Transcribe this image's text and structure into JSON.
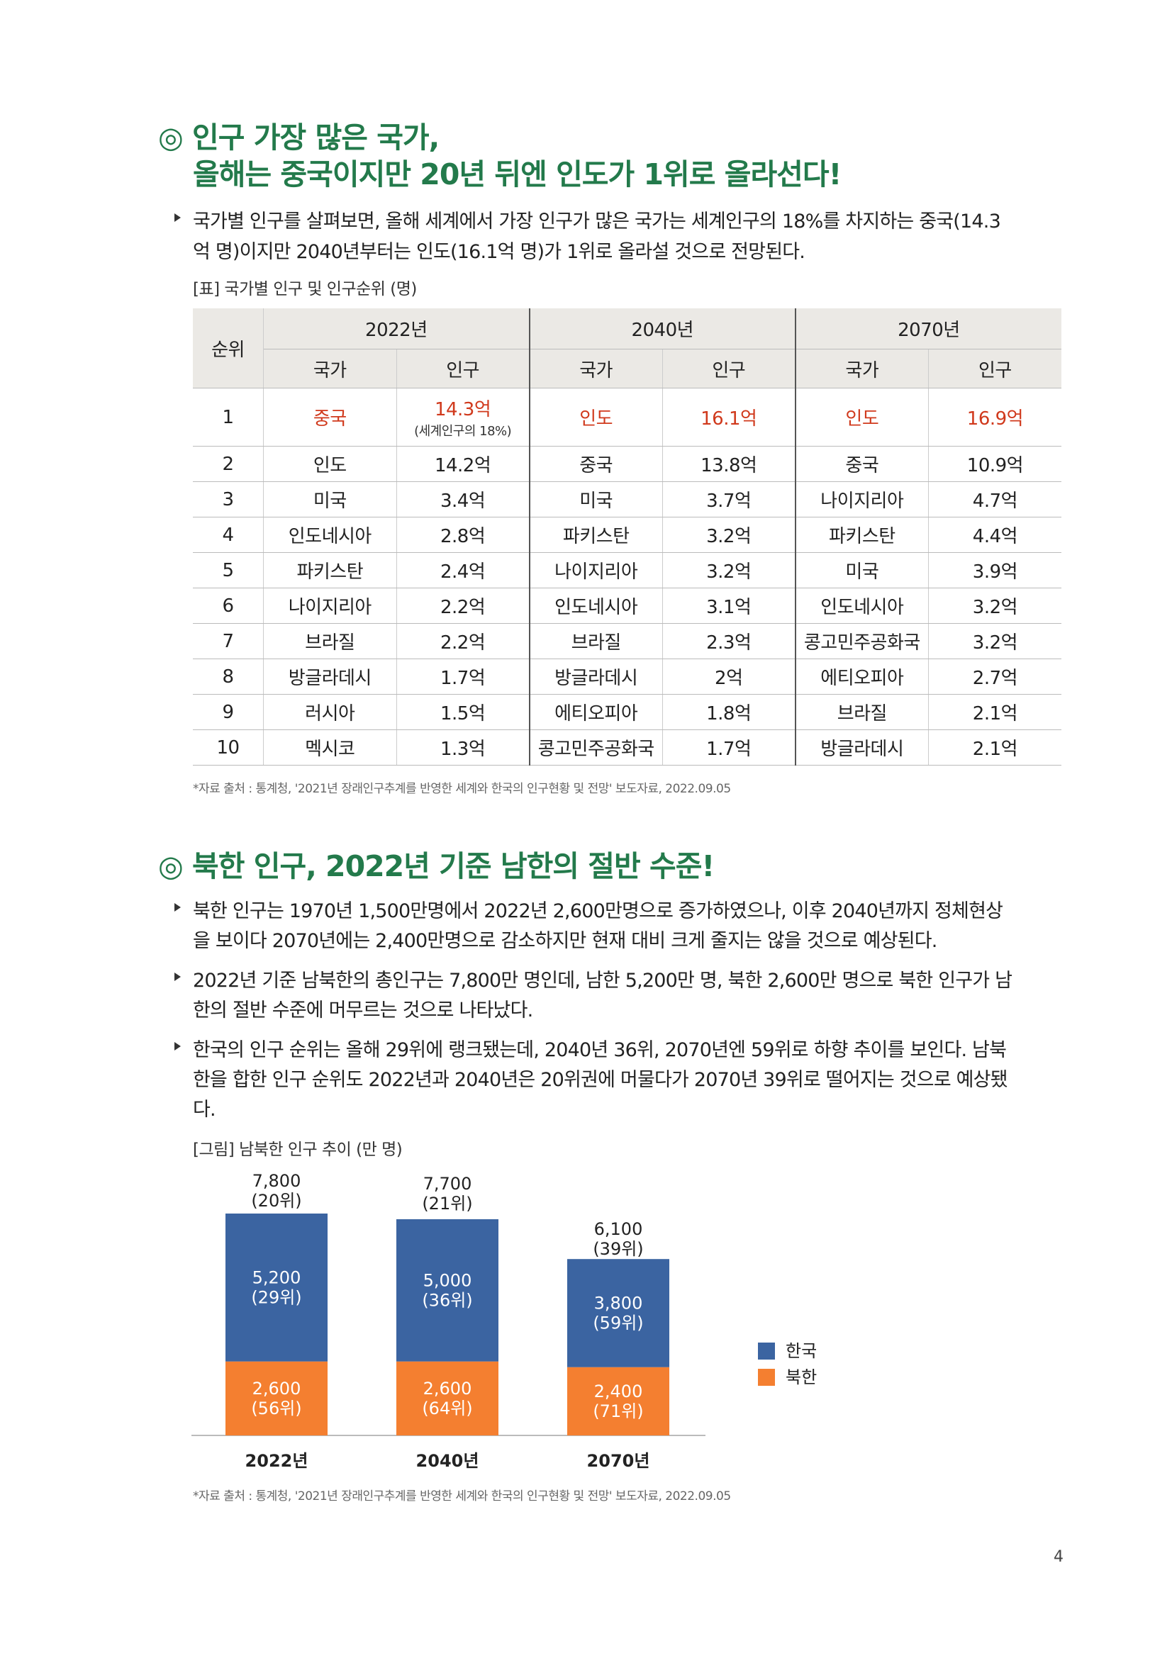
{
  "section1": {
    "title_lines": [
      "◎ 인구 가장 많은 국가,",
      "올해는 중국이지만 20년 뒤엔 인도가 1위로 올라선다!"
    ],
    "bullets": [
      [
        "국가별 인구를 살펴보면, 올해 세계에서 가장 인구가 많은 국가는 세계인구의 18%를 차지하는 중국(14.3",
        "억 명)이지만 2040년부터는 인도(16.1억 명)가 1위로 올라설 것으로 전망된다."
      ]
    ],
    "table": {
      "caption": "[표] 국가별 인구 및 인구순위 (명)",
      "corner": "순위",
      "years": [
        "2022년",
        "2040년",
        "2070년"
      ],
      "subheaders": [
        "국가",
        "인구"
      ],
      "highlight_color": "#d0391c",
      "note": "(세계인구의 18%)",
      "rows": [
        [
          "1",
          "중국",
          "14.3억",
          "인도",
          "16.1억",
          "인도",
          "16.9억"
        ],
        [
          "2",
          "인도",
          "14.2억",
          "중국",
          "13.8억",
          "중국",
          "10.9억"
        ],
        [
          "3",
          "미국",
          "3.4억",
          "미국",
          "3.7억",
          "나이지리아",
          "4.7억"
        ],
        [
          "4",
          "인도네시아",
          "2.8억",
          "파키스탄",
          "3.2억",
          "파키스탄",
          "4.4억"
        ],
        [
          "5",
          "파키스탄",
          "2.4억",
          "나이지리아",
          "3.2억",
          "미국",
          "3.9억"
        ],
        [
          "6",
          "나이지리아",
          "2.2억",
          "인도네시아",
          "3.1억",
          "인도네시아",
          "3.2억"
        ],
        [
          "7",
          "브라질",
          "2.2억",
          "브라질",
          "2.3억",
          "콩고민주공화국",
          "3.2억"
        ],
        [
          "8",
          "방글라데시",
          "1.7억",
          "방글라데시",
          "2억",
          "에티오피아",
          "2.7억"
        ],
        [
          "9",
          "러시아",
          "1.5억",
          "에티오피아",
          "1.8억",
          "브라질",
          "2.1억"
        ],
        [
          "10",
          "멕시코",
          "1.3억",
          "콩고민주공화국",
          "1.7억",
          "방글라데시",
          "2.1억"
        ]
      ]
    },
    "source": "*자료 출처 : 통계청, '2021년 장래인구추계를 반영한 세계와 한국의 인구현황 및 전망' 보도자료, 2022.09.05"
  },
  "section2": {
    "title_lines": [
      "◎ 북한 인구, 2022년 기준 남한의 절반 수준!"
    ],
    "bullets": [
      [
        "북한 인구는 1970년 1,500만명에서 2022년 2,600만명으로 증가하였으나, 이후 2040년까지 정체현상",
        "을 보이다 2070년에는 2,400만명으로 감소하지만 현재 대비 크게 줄지는 않을 것으로 예상된다."
      ],
      [
        "2022년 기준 남북한의 총인구는 7,800만 명인데, 남한 5,200만 명, 북한 2,600만 명으로 북한 인구가 남",
        "한의 절반 수준에 머무르는 것으로 나타났다."
      ],
      [
        "한국의 인구 순위는 올해 29위에 랭크됐는데, 2040년 36위, 2070년엔 59위로 하향 추이를 보인다. 남북",
        "한을 합한 인구 순위도 2022년과 2040년은 20위권에 머물다가 2070년 39위로 떨어지는 것으로 예상됐",
        "다."
      ]
    ],
    "chart_data": {
      "type": "bar",
      "stacked": true,
      "caption": "[그림] 남북한 인구 추이 (만 명)",
      "categories": [
        "2022년",
        "2040년",
        "2070년"
      ],
      "series": [
        {
          "name": "한국",
          "color": "#3b64a1",
          "values": [
            5200,
            5000,
            3800
          ],
          "value_labels": [
            "5,200",
            "5,000",
            "3,800"
          ],
          "ranks": [
            "(29위)",
            "(36위)",
            "(59위)"
          ]
        },
        {
          "name": "북한",
          "color": "#f47f30",
          "values": [
            2600,
            2600,
            2400
          ],
          "value_labels": [
            "2,600",
            "2,600",
            "2,400"
          ],
          "ranks": [
            "(56위)",
            "(64위)",
            "(71위)"
          ]
        }
      ],
      "totals": {
        "values": [
          7800,
          7700,
          6100
        ],
        "value_labels": [
          "7,800",
          "7,700",
          "6,100"
        ],
        "ranks": [
          "(20위)",
          "(21위)",
          "(39위)"
        ]
      },
      "legend": "right"
    },
    "source": "*자료 출처 : 통계청, '2021년 장래인구추계를 반영한 세계와 한국의 인구현황 및 전망' 보도자료, 2022.09.05"
  },
  "page_number": "4"
}
